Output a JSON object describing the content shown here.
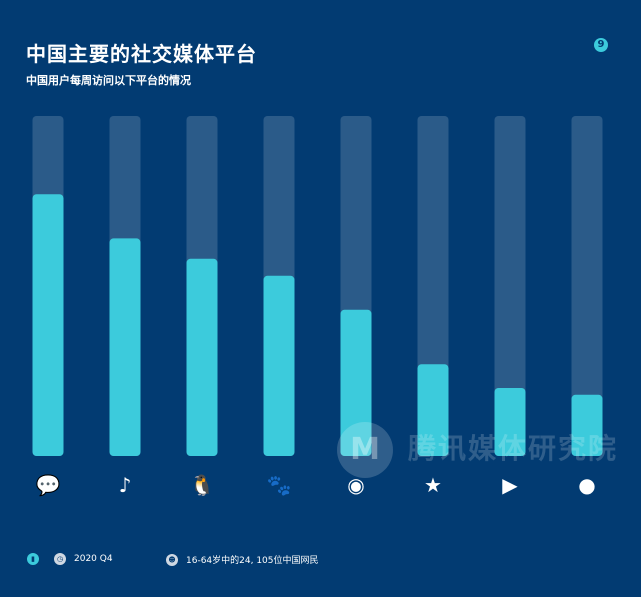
{
  "header": {
    "title": "中国主要的社交媒体平台",
    "subtitle": "中国用户每周访问以下平台的情况",
    "page_number": "9"
  },
  "chart_data": {
    "type": "bar",
    "categories": [
      "wechat-icon",
      "douyin-icon",
      "qq-icon",
      "baidu-icon",
      "weibo-icon",
      "qzone-icon",
      "tencent-video-icon",
      "flame-video-icon"
    ],
    "values": [
      0.77,
      0.64,
      0.58,
      0.53,
      0.43,
      0.27,
      0.2,
      0.18
    ],
    "ylim": [
      0,
      1
    ],
    "grid": false,
    "colors": {
      "bar": "#3ccbdc",
      "track": "#2b5b89",
      "background": "#023b72"
    }
  },
  "footer": {
    "period": "2020 Q4",
    "sample": "16-64岁中的24, 105位中国网民"
  },
  "watermark": "腾讯媒体研究院"
}
